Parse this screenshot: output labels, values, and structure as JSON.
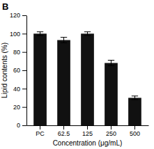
{
  "chart_data": {
    "type": "bar",
    "categories": [
      "PC",
      "62.5",
      "125",
      "250",
      "500"
    ],
    "values": [
      100,
      93,
      100,
      68,
      30
    ],
    "error_bars": [
      2,
      3,
      2,
      3,
      2
    ],
    "color": "#111111",
    "xlabel": "Concentration (μg/mL)",
    "ylabel": "Lipid contents (%)",
    "ylim": [
      0,
      120
    ],
    "yticks": [
      0,
      20,
      40,
      60,
      80,
      100,
      120
    ],
    "annotations": [
      "B"
    ],
    "grid": false
  }
}
